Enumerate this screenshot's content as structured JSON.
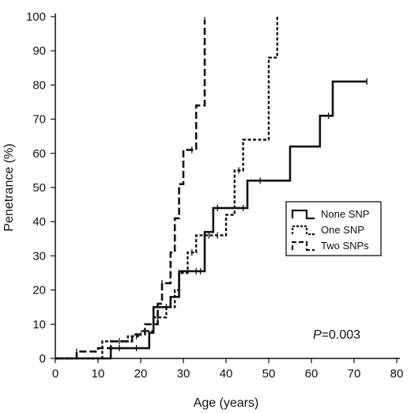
{
  "chart_data": {
    "type": "line",
    "subtype": "kaplan-meier step (cumulative penetrance)",
    "title": "",
    "xlabel": "Age (years)",
    "ylabel": "Penetrance (%)",
    "xlim": [
      0,
      80
    ],
    "ylim": [
      0,
      100
    ],
    "xticks": [
      0,
      10,
      20,
      30,
      40,
      50,
      60,
      70,
      80
    ],
    "yticks": [
      0,
      10,
      20,
      30,
      40,
      50,
      60,
      70,
      80,
      90,
      100
    ],
    "grid": false,
    "legend_position": "right-middle",
    "annotation": {
      "italic": "P",
      "rest": "=0.003"
    },
    "series": [
      {
        "name": "None SNP",
        "style": "solid",
        "steps": [
          [
            0,
            0
          ],
          [
            13,
            3
          ],
          [
            22,
            7.5
          ],
          [
            23,
            15
          ],
          [
            27,
            18
          ],
          [
            29,
            25.5
          ],
          [
            35,
            37
          ],
          [
            37,
            44
          ],
          [
            45,
            52
          ],
          [
            55,
            62
          ],
          [
            62,
            71
          ],
          [
            65,
            81
          ],
          [
            73,
            81
          ]
        ],
        "censor_ages": [
          15,
          19,
          26,
          33,
          34,
          38,
          44,
          48,
          64,
          73
        ]
      },
      {
        "name": "One SNP",
        "style": "short-dash",
        "steps": [
          [
            0,
            0
          ],
          [
            11,
            5
          ],
          [
            17,
            6.5
          ],
          [
            20,
            8
          ],
          [
            23,
            12
          ],
          [
            26,
            15
          ],
          [
            28,
            20
          ],
          [
            29,
            25
          ],
          [
            31,
            31
          ],
          [
            33,
            36
          ],
          [
            40,
            42
          ],
          [
            42,
            55
          ],
          [
            44,
            64
          ],
          [
            50,
            88
          ],
          [
            52,
            100
          ]
        ],
        "censor_ages": [
          15,
          19,
          24,
          32,
          36,
          38,
          43
        ]
      },
      {
        "name": "Two SNPs",
        "style": "long-dash",
        "steps": [
          [
            0,
            0
          ],
          [
            5,
            2
          ],
          [
            10,
            3
          ],
          [
            13,
            5
          ],
          [
            18,
            7
          ],
          [
            21,
            10
          ],
          [
            24,
            16
          ],
          [
            25,
            22
          ],
          [
            27,
            31
          ],
          [
            28,
            41
          ],
          [
            29,
            51
          ],
          [
            30,
            61
          ],
          [
            33,
            74
          ],
          [
            35,
            99
          ]
        ],
        "censor_ages": [
          5,
          25,
          32,
          35
        ]
      }
    ]
  }
}
